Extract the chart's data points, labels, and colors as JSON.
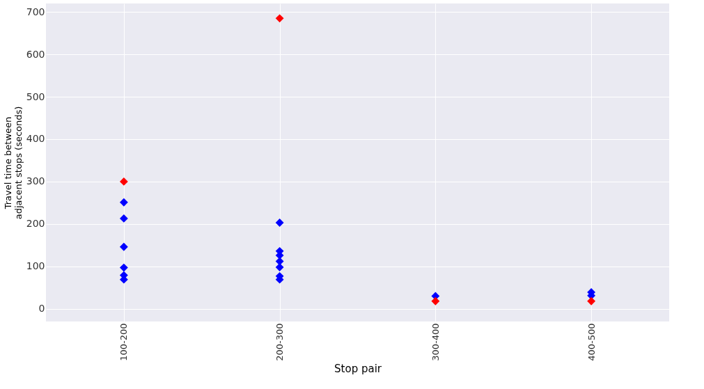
{
  "chart_data": {
    "type": "scatter",
    "xlabel": "Stop pair",
    "ylabel": "Travel time between\nadjacent stops (seconds)",
    "categories": [
      "100-200",
      "200-300",
      "300-400",
      "400-500"
    ],
    "ylim": [
      -30,
      720
    ],
    "yticks": [
      0,
      100,
      200,
      300,
      400,
      500,
      600,
      700
    ],
    "grid": true,
    "marker": "diamond",
    "legend": false,
    "series": [
      {
        "color": "#0000ff",
        "x": [
          "100-200",
          "100-200",
          "100-200",
          "100-200",
          "100-200",
          "100-200",
          "200-300",
          "200-300",
          "200-300",
          "200-300",
          "200-300",
          "200-300",
          "200-300",
          "300-400",
          "300-400",
          "400-500",
          "400-500"
        ],
        "values": [
          251,
          213,
          146,
          97,
          79,
          69,
          203,
          136,
          126,
          112,
          98,
          77,
          69,
          30,
          null,
          39,
          31
        ]
      },
      {
        "color": "#ff0000",
        "x": [
          "100-200",
          "200-300",
          "300-400",
          "400-500"
        ],
        "values": [
          300,
          685,
          18,
          18
        ]
      }
    ]
  }
}
